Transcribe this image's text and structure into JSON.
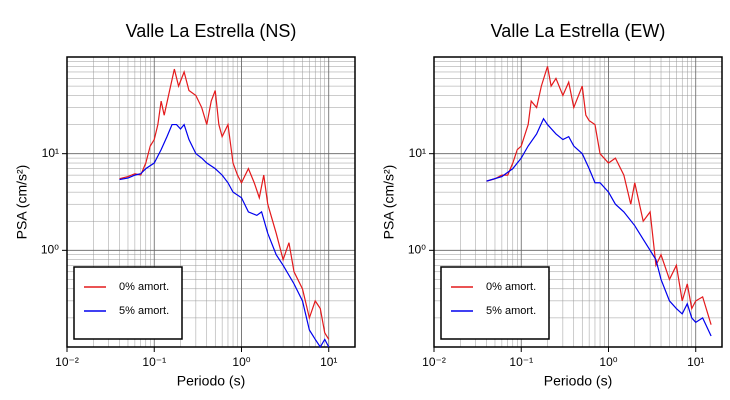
{
  "chart_data": [
    {
      "type": "line",
      "title": "Valle La Estrella (NS)",
      "xlabel": "Periodo (s)",
      "ylabel": "PSA (cm/s²)",
      "log_x": true,
      "log_y": true,
      "grid": true,
      "legend": "lower left",
      "xlim": [
        0.01,
        20
      ],
      "ylim": [
        0.1,
        100
      ],
      "xticks": [
        {
          "value": 0.01,
          "label": "10⁻²"
        },
        {
          "value": 0.1,
          "label": "10⁻¹"
        },
        {
          "value": 1,
          "label": "10⁰"
        },
        {
          "value": 10,
          "label": "10¹"
        }
      ],
      "yticks": [
        {
          "value": 1,
          "label": "10⁰"
        },
        {
          "value": 10,
          "label": "10¹"
        }
      ],
      "series": [
        {
          "name": "0% amort.",
          "color": "#e41a1c",
          "x": [
            0.04,
            0.05,
            0.06,
            0.07,
            0.08,
            0.09,
            0.1,
            0.11,
            0.12,
            0.13,
            0.15,
            0.17,
            0.19,
            0.22,
            0.25,
            0.3,
            0.35,
            0.4,
            0.45,
            0.5,
            0.55,
            0.6,
            0.7,
            0.8,
            0.9,
            1.0,
            1.2,
            1.4,
            1.6,
            1.8,
            2.0,
            2.5,
            3,
            3.5,
            4,
            5,
            6,
            7,
            8,
            9,
            10
          ],
          "values": [
            5.5,
            5.8,
            6.2,
            6.0,
            8,
            12,
            14,
            20,
            35,
            25,
            45,
            75,
            50,
            70,
            45,
            40,
            30,
            20,
            35,
            45,
            20,
            15,
            20,
            8,
            6,
            5,
            7,
            5,
            3.5,
            6,
            3,
            1.5,
            0.8,
            1.2,
            0.6,
            0.4,
            0.2,
            0.3,
            0.25,
            0.14,
            0.12
          ]
        },
        {
          "name": "5% amort.",
          "color": "#0000ee",
          "x": [
            0.04,
            0.05,
            0.06,
            0.07,
            0.08,
            0.1,
            0.12,
            0.14,
            0.16,
            0.18,
            0.2,
            0.22,
            0.25,
            0.3,
            0.35,
            0.4,
            0.5,
            0.6,
            0.7,
            0.8,
            1.0,
            1.2,
            1.5,
            1.7,
            2,
            2.5,
            3,
            4,
            5,
            6,
            7,
            8,
            9,
            10
          ],
          "values": [
            5.4,
            5.6,
            6,
            6.2,
            7,
            8,
            11,
            15,
            20,
            20,
            18,
            20,
            14,
            10,
            9,
            8,
            7,
            6,
            5,
            4,
            3.5,
            2.5,
            2.3,
            2.5,
            1.5,
            0.9,
            0.7,
            0.45,
            0.3,
            0.15,
            0.12,
            0.1,
            0.12,
            0.1
          ]
        }
      ]
    },
    {
      "type": "line",
      "title": "Valle La Estrella (EW)",
      "xlabel": "Periodo (s)",
      "ylabel": "PSA (cm/s²)",
      "log_x": true,
      "log_y": true,
      "grid": true,
      "legend": "lower left",
      "xlim": [
        0.01,
        20
      ],
      "ylim": [
        0.1,
        100
      ],
      "xticks": [
        {
          "value": 0.01,
          "label": "10⁻²"
        },
        {
          "value": 0.1,
          "label": "10⁻¹"
        },
        {
          "value": 1,
          "label": "10⁰"
        },
        {
          "value": 10,
          "label": "10¹"
        }
      ],
      "yticks": [
        {
          "value": 1,
          "label": "10⁰"
        },
        {
          "value": 10,
          "label": "10¹"
        }
      ],
      "series": [
        {
          "name": "0% amort.",
          "color": "#e41a1c",
          "x": [
            0.04,
            0.05,
            0.06,
            0.07,
            0.08,
            0.09,
            0.1,
            0.12,
            0.13,
            0.15,
            0.17,
            0.2,
            0.22,
            0.25,
            0.3,
            0.35,
            0.4,
            0.5,
            0.55,
            0.6,
            0.7,
            0.8,
            1.0,
            1.2,
            1.5,
            1.8,
            2,
            2.5,
            3,
            3.5,
            4,
            5,
            6,
            7,
            8,
            9,
            10,
            12,
            15
          ],
          "values": [
            5.2,
            5.5,
            6,
            6,
            8,
            11,
            12,
            20,
            35,
            30,
            50,
            80,
            50,
            60,
            40,
            55,
            30,
            50,
            25,
            22,
            20,
            10,
            8,
            9,
            6,
            3,
            5,
            2,
            2.5,
            0.7,
            0.9,
            0.5,
            0.7,
            0.3,
            0.45,
            0.25,
            0.3,
            0.33,
            0.17
          ]
        },
        {
          "name": "5% amort.",
          "color": "#0000ee",
          "x": [
            0.04,
            0.06,
            0.08,
            0.1,
            0.12,
            0.15,
            0.18,
            0.2,
            0.25,
            0.3,
            0.35,
            0.4,
            0.5,
            0.6,
            0.7,
            0.8,
            1.0,
            1.2,
            1.5,
            2,
            2.5,
            3,
            3.5,
            4,
            5,
            6,
            7,
            8,
            9,
            10,
            12,
            15
          ],
          "values": [
            5.2,
            5.8,
            7,
            9,
            12,
            16,
            23,
            20,
            16,
            14,
            15,
            12,
            10,
            7,
            5,
            5,
            4,
            3,
            2.5,
            1.8,
            1.3,
            1,
            0.8,
            0.5,
            0.3,
            0.25,
            0.22,
            0.28,
            0.2,
            0.18,
            0.2,
            0.13
          ]
        }
      ]
    }
  ]
}
